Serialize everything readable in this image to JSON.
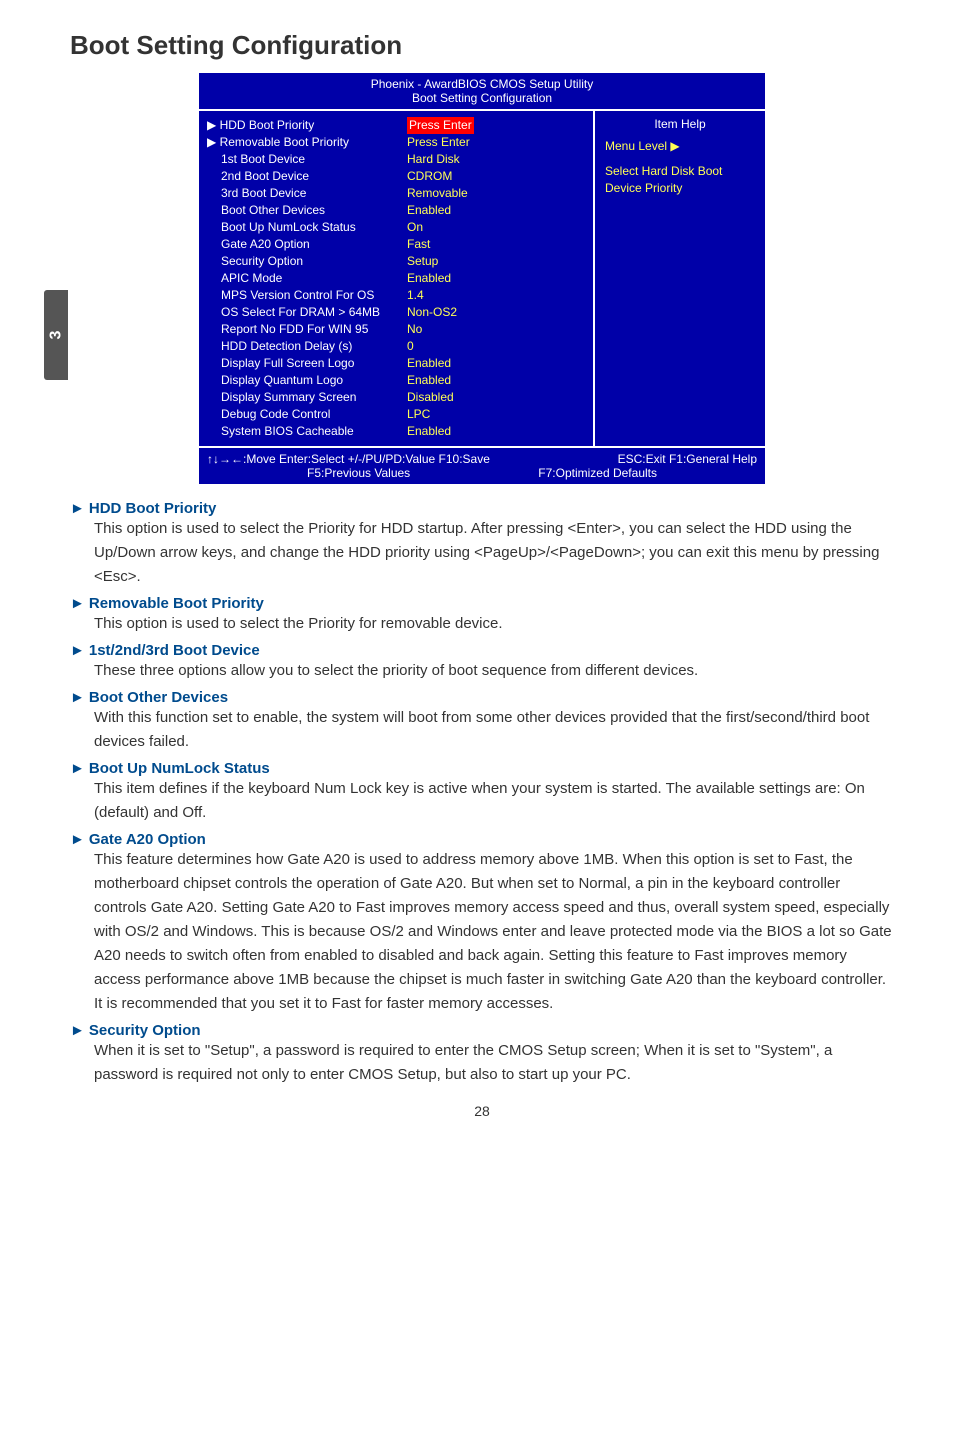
{
  "side_tab": "3",
  "page_title": "Boot Setting Configuration",
  "bios": {
    "header_line1": "Phoenix - AwardBIOS CMOS Setup Utility",
    "header_line2": "Boot Setting Configuration",
    "rows": [
      {
        "label": "HDD Boot Priority",
        "value": "Press Enter",
        "cursor": true,
        "red": true
      },
      {
        "label": "Removable Boot Priority",
        "value": "Press Enter",
        "cursor": true
      },
      {
        "label": "1st Boot Device",
        "value": "Hard Disk",
        "indent": true
      },
      {
        "label": "2nd Boot Device",
        "value": "CDROM",
        "indent": true
      },
      {
        "label": "3rd Boot Device",
        "value": "Removable",
        "indent": true
      },
      {
        "label": "Boot Other Devices",
        "value": "Enabled",
        "indent": true
      },
      {
        "label": "Boot Up NumLock Status",
        "value": "On",
        "indent": true
      },
      {
        "label": "Gate A20 Option",
        "value": "Fast",
        "indent": true
      },
      {
        "label": "Security Option",
        "value": "Setup",
        "indent": true
      },
      {
        "label": "APIC Mode",
        "value": "Enabled",
        "indent": true
      },
      {
        "label": "MPS Version Control For OS",
        "value": "1.4",
        "indent": true
      },
      {
        "label": "OS Select For DRAM > 64MB",
        "value": "Non-OS2",
        "indent": true
      },
      {
        "label": "Report No FDD For WIN 95",
        "value": "No",
        "indent": true
      },
      {
        "label": "HDD Detection Delay (s)",
        "value": "0",
        "indent": true
      },
      {
        "label": "Display Full Screen Logo",
        "value": "Enabled",
        "indent": true
      },
      {
        "label": "Display Quantum Logo",
        "value": "Enabled",
        "indent": true
      },
      {
        "label": "Display Summary Screen",
        "value": "Disabled",
        "indent": true
      },
      {
        "label": "Debug Code Control",
        "value": "LPC",
        "indent": true
      },
      {
        "label": "System BIOS Cacheable",
        "value": "Enabled",
        "indent": true
      }
    ],
    "right": {
      "item_help": "Item Help",
      "menu_level": "Menu Level  ▶",
      "help1": "Select Hard Disk Boot",
      "help2": "Device Priority"
    },
    "footer_line1_left": "↑↓→←:Move   Enter:Select   +/-/PU/PD:Value   F10:Save",
    "footer_line1_right": "ESC:Exit  F1:General Help",
    "footer_line2_left": "F5:Previous Values",
    "footer_line2_right": "F7:Optimized Defaults"
  },
  "sections": [
    {
      "head": "HDD Boot Priority",
      "body": "This option is used to select the Priority for HDD startup. After pressing <Enter>, you can select the HDD using the Up/Down arrow keys, and change the HDD priority using <PageUp>/<PageDown>; you can exit this menu by pressing <Esc>."
    },
    {
      "head": "Removable Boot Priority",
      "body": "This option is used to select the Priority for removable device."
    },
    {
      "head": "1st/2nd/3rd Boot Device",
      "body": "These three options allow you to select the priority of boot sequence from different devices."
    },
    {
      "head": "Boot Other Devices",
      "body": "With this function set to enable, the system will boot from some other devices provided that the first/second/third boot devices failed."
    },
    {
      "head": "Boot Up NumLock Status",
      "body": "This item defines if the keyboard Num Lock key is active when your system is started. The available settings are: On (default) and Off."
    },
    {
      "head": "Gate A20 Option",
      "body": "This feature determines how Gate A20 is used to address memory above 1MB. When this option is set to Fast, the motherboard chipset controls the operation of Gate A20. But when set to Normal, a pin in the keyboard controller controls Gate A20. Setting Gate A20 to Fast improves memory access speed and thus, overall system speed, especially with OS/2 and Windows. This is because OS/2 and Windows enter and leave protected mode via the BIOS a lot so Gate A20 needs to switch often from enabled to disabled and back again. Setting this feature to Fast improves memory access performance above 1MB because the chipset is much faster in switching Gate A20 than the keyboard controller. It is recommended that you set it to Fast for faster memory accesses."
    },
    {
      "head": "Security Option",
      "body": "When it is set to \"Setup\", a password is required to enter the CMOS Setup screen; When it is set to \"System\", a password is required not only to enter CMOS Setup, but also to start up your PC."
    }
  ],
  "page_number": "28"
}
